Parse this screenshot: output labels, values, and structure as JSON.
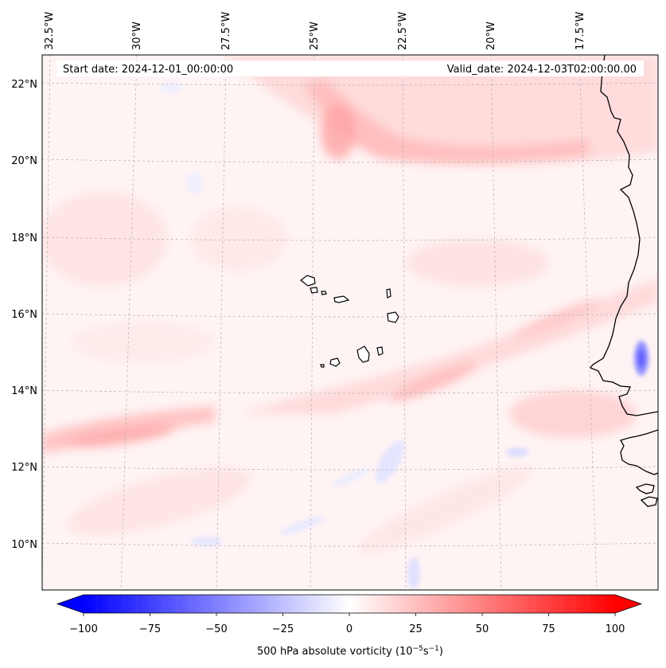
{
  "header": {
    "start_label": "Start date: 2024-12-01_00:00:00",
    "valid_label": "Valid_date: 2024-12-03T02:00:00.00"
  },
  "axes": {
    "longitude_labels": [
      "32.5°W",
      "30°W",
      "27.5°W",
      "25°W",
      "22.5°W",
      "20°W",
      "17.5°W"
    ],
    "latitude_labels": [
      "22°N",
      "20°N",
      "18°N",
      "16°N",
      "14°N",
      "12°N",
      "10°N"
    ]
  },
  "colorbar": {
    "title": "500 hPa absolute vorticity (10",
    "title_exp1": "−5",
    "title_mid": "s",
    "title_exp2": "−1",
    "title_end": ")",
    "vmin": -100,
    "vmax": 100,
    "ticks": [
      "−100",
      "−75",
      "−50",
      "−25",
      "0",
      "25",
      "50",
      "75",
      "100"
    ],
    "low_color": "#0000ff",
    "mid_color": "#ffffff",
    "high_color": "#ff0000"
  },
  "map": {
    "ocean_base_color": "#fff4f4",
    "coastline_color": "#000000",
    "gridline_color": "#b0b0b0"
  }
}
